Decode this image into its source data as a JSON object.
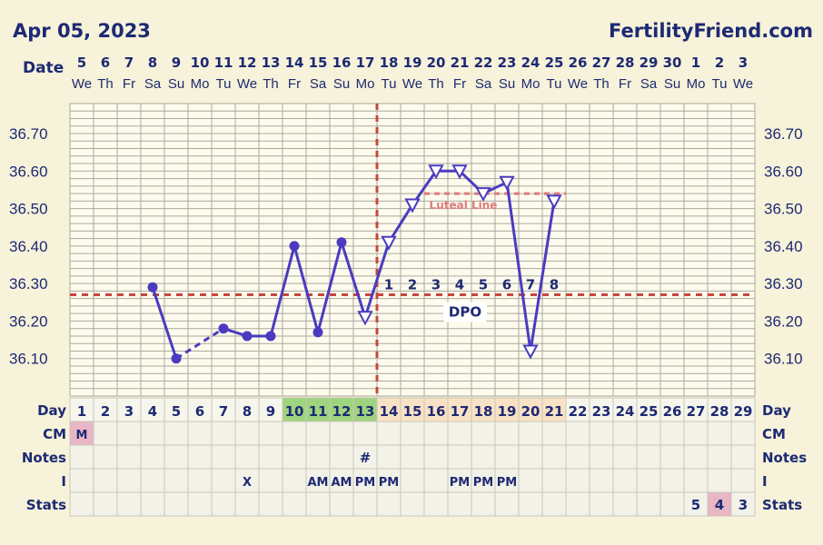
{
  "header": {
    "date": "Apr 05, 2023",
    "site": "FertilityFriend.com"
  },
  "chart_data": {
    "type": "line",
    "title": "",
    "date_row_label": "Date",
    "dates": [
      "5",
      "6",
      "7",
      "8",
      "9",
      "10",
      "11",
      "12",
      "13",
      "14",
      "15",
      "16",
      "17",
      "18",
      "19",
      "20",
      "21",
      "22",
      "23",
      "24",
      "25",
      "26",
      "27",
      "28",
      "29",
      "30",
      "1",
      "2",
      "3"
    ],
    "weekdays": [
      "We",
      "Th",
      "Fr",
      "Sa",
      "Su",
      "Mo",
      "Tu",
      "We",
      "Th",
      "Fr",
      "Sa",
      "Su",
      "Mo",
      "Tu",
      "We",
      "Th",
      "Fr",
      "Sa",
      "Su",
      "Mo",
      "Tu",
      "We",
      "Th",
      "Fr",
      "Sa",
      "Su",
      "Mo",
      "Tu",
      "We"
    ],
    "ylim": [
      36.0,
      36.78
    ],
    "yticks": [
      "36.70",
      "36.60",
      "36.50",
      "36.40",
      "36.30",
      "36.20",
      "36.10"
    ],
    "series": [
      {
        "values": [
          null,
          null,
          null,
          36.29,
          36.1,
          null,
          36.18,
          36.16,
          36.16,
          36.4,
          36.17,
          36.41,
          36.21,
          36.41,
          36.51,
          36.6,
          36.6,
          36.54,
          36.57,
          36.12,
          36.52,
          null,
          null,
          null,
          null,
          null,
          null,
          null,
          null
        ],
        "markers": [
          "",
          "",
          "",
          "dot",
          "dot",
          "",
          "dot",
          "dot",
          "dot",
          "dot",
          "dot",
          "dot",
          "tri",
          "tri",
          "tri",
          "tri",
          "tri",
          "tri",
          "tri",
          "tri",
          "tri",
          "",
          "",
          "",
          "",
          "",
          "",
          "",
          ""
        ],
        "dashed_gaps": [
          [
            5,
            7
          ]
        ]
      }
    ],
    "coverline": 36.27,
    "ovulation_day": 13,
    "luteal_line": {
      "value": 36.54,
      "from_day": 16,
      "to_day": 21,
      "label": "Luteal Line"
    },
    "dpo_label": "DPO",
    "dpo_numbers": [
      "1",
      "2",
      "3",
      "4",
      "5",
      "6",
      "7",
      "8"
    ],
    "dpo_start_day": 14,
    "color_line": "#4a3bc0",
    "color_coverline": "#c8473b",
    "color_luteal": "#e07a7a",
    "table": {
      "day_label": "Day",
      "days": [
        "1",
        "2",
        "3",
        "4",
        "5",
        "6",
        "7",
        "8",
        "9",
        "10",
        "11",
        "12",
        "13",
        "14",
        "15",
        "16",
        "17",
        "18",
        "19",
        "20",
        "21",
        "22",
        "23",
        "24",
        "25",
        "26",
        "27",
        "28",
        "29"
      ],
      "fertile_days": [
        10,
        11,
        12,
        13
      ],
      "luteal_days": [
        14,
        15,
        16,
        17,
        18,
        19,
        20,
        21
      ],
      "cm_label": "CM",
      "cm": {
        "1": "M"
      },
      "notes_label": "Notes",
      "notes": {
        "13": "#"
      },
      "i_label": "I",
      "i": {
        "8": "X",
        "11": "AM",
        "12": "AM",
        "13": "PM",
        "14": "PM",
        "17": "PM",
        "18": "PM",
        "19": "PM"
      },
      "stats_label": "Stats",
      "stats": {
        "27": "5",
        "28": "4",
        "29": "3"
      },
      "stats_highlight": [
        28
      ]
    }
  }
}
